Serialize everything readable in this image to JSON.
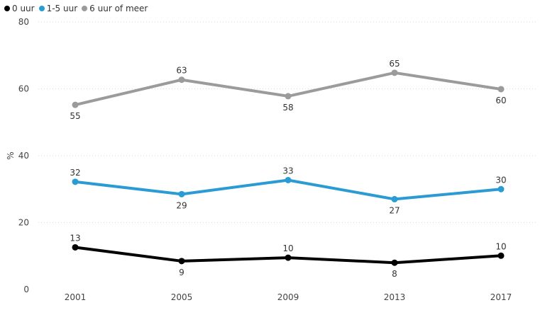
{
  "chart_data": {
    "type": "line",
    "title": "",
    "xlabel": "",
    "ylabel": "%",
    "categories": [
      "2001",
      "2005",
      "2009",
      "2013",
      "2017"
    ],
    "ylim": [
      0,
      80
    ],
    "yticks": [
      0,
      20,
      40,
      60,
      80
    ],
    "grid": true,
    "legend_position": "top-left",
    "series": [
      {
        "name": "0 uur",
        "color": "#000000",
        "values": [
          12.6,
          8.5,
          9.5,
          8.0,
          10.1
        ],
        "labels": [
          "13",
          "9",
          "10",
          "8",
          "10"
        ],
        "label_pos": [
          "above",
          "below",
          "above",
          "below",
          "above"
        ]
      },
      {
        "name": "1-5 uur",
        "color": "#2b9bd3",
        "values": [
          32.2,
          28.5,
          32.7,
          27.0,
          30.0
        ],
        "labels": [
          "32",
          "29",
          "33",
          "27",
          "30"
        ],
        "label_pos": [
          "above",
          "below",
          "above",
          "below",
          "above"
        ]
      },
      {
        "name": "6 uur of meer",
        "color": "#9b9b9b",
        "values": [
          55.2,
          62.7,
          57.8,
          64.8,
          59.9
        ],
        "labels": [
          "55",
          "63",
          "58",
          "65",
          "60"
        ],
        "label_pos": [
          "below",
          "above",
          "below",
          "above",
          "below"
        ]
      }
    ]
  }
}
